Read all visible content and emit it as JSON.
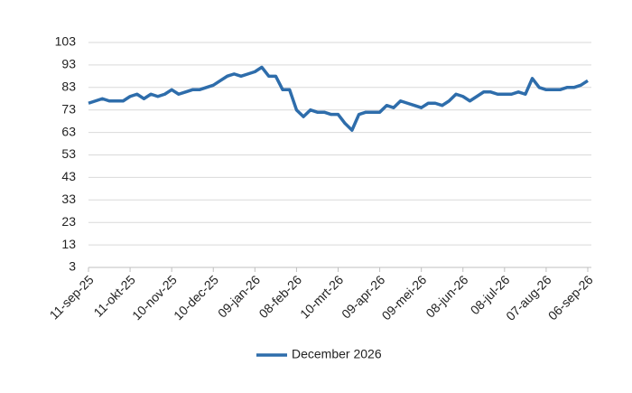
{
  "chart_data": {
    "type": "line",
    "categories": [
      "11-sep-25",
      null,
      null,
      null,
      null,
      null,
      "11-okt-25",
      null,
      null,
      null,
      null,
      null,
      "10-nov-25",
      null,
      null,
      null,
      null,
      null,
      "10-dec-25",
      null,
      null,
      null,
      null,
      null,
      "09-jan-26",
      null,
      null,
      null,
      null,
      null,
      "08-feb-26",
      null,
      null,
      null,
      null,
      null,
      "10-mrt-26",
      null,
      null,
      null,
      null,
      null,
      "09-apr-26",
      null,
      null,
      null,
      null,
      null,
      "09-mei-26",
      null,
      null,
      null,
      null,
      null,
      "08-jun-26",
      null,
      null,
      null,
      null,
      null,
      "08-jul-26",
      null,
      null,
      null,
      null,
      null,
      "07-aug-26",
      null,
      null,
      null,
      null,
      null,
      "06-sep-26"
    ],
    "series": [
      {
        "name": "December 2026",
        "color": "#2e6dab",
        "values": [
          76,
          77,
          78,
          77,
          77,
          77,
          79,
          80,
          78,
          80,
          79,
          80,
          82,
          80,
          81,
          82,
          82,
          83,
          84,
          86,
          88,
          89,
          88,
          89,
          90,
          92,
          88,
          88,
          82,
          82,
          73,
          70,
          73,
          72,
          72,
          71,
          71,
          67,
          64,
          71,
          72,
          72,
          72,
          75,
          74,
          77,
          76,
          75,
          74,
          76,
          76,
          75,
          77,
          80,
          79,
          77,
          79,
          81,
          81,
          80,
          80,
          80,
          81,
          80,
          87,
          83,
          82,
          82,
          82,
          83,
          83,
          84,
          86
        ]
      }
    ],
    "ylim": [
      3,
      103
    ],
    "yticks": [
      3,
      13,
      23,
      33,
      43,
      53,
      63,
      73,
      83,
      93,
      103
    ],
    "grid": true,
    "legend": "bottom"
  }
}
